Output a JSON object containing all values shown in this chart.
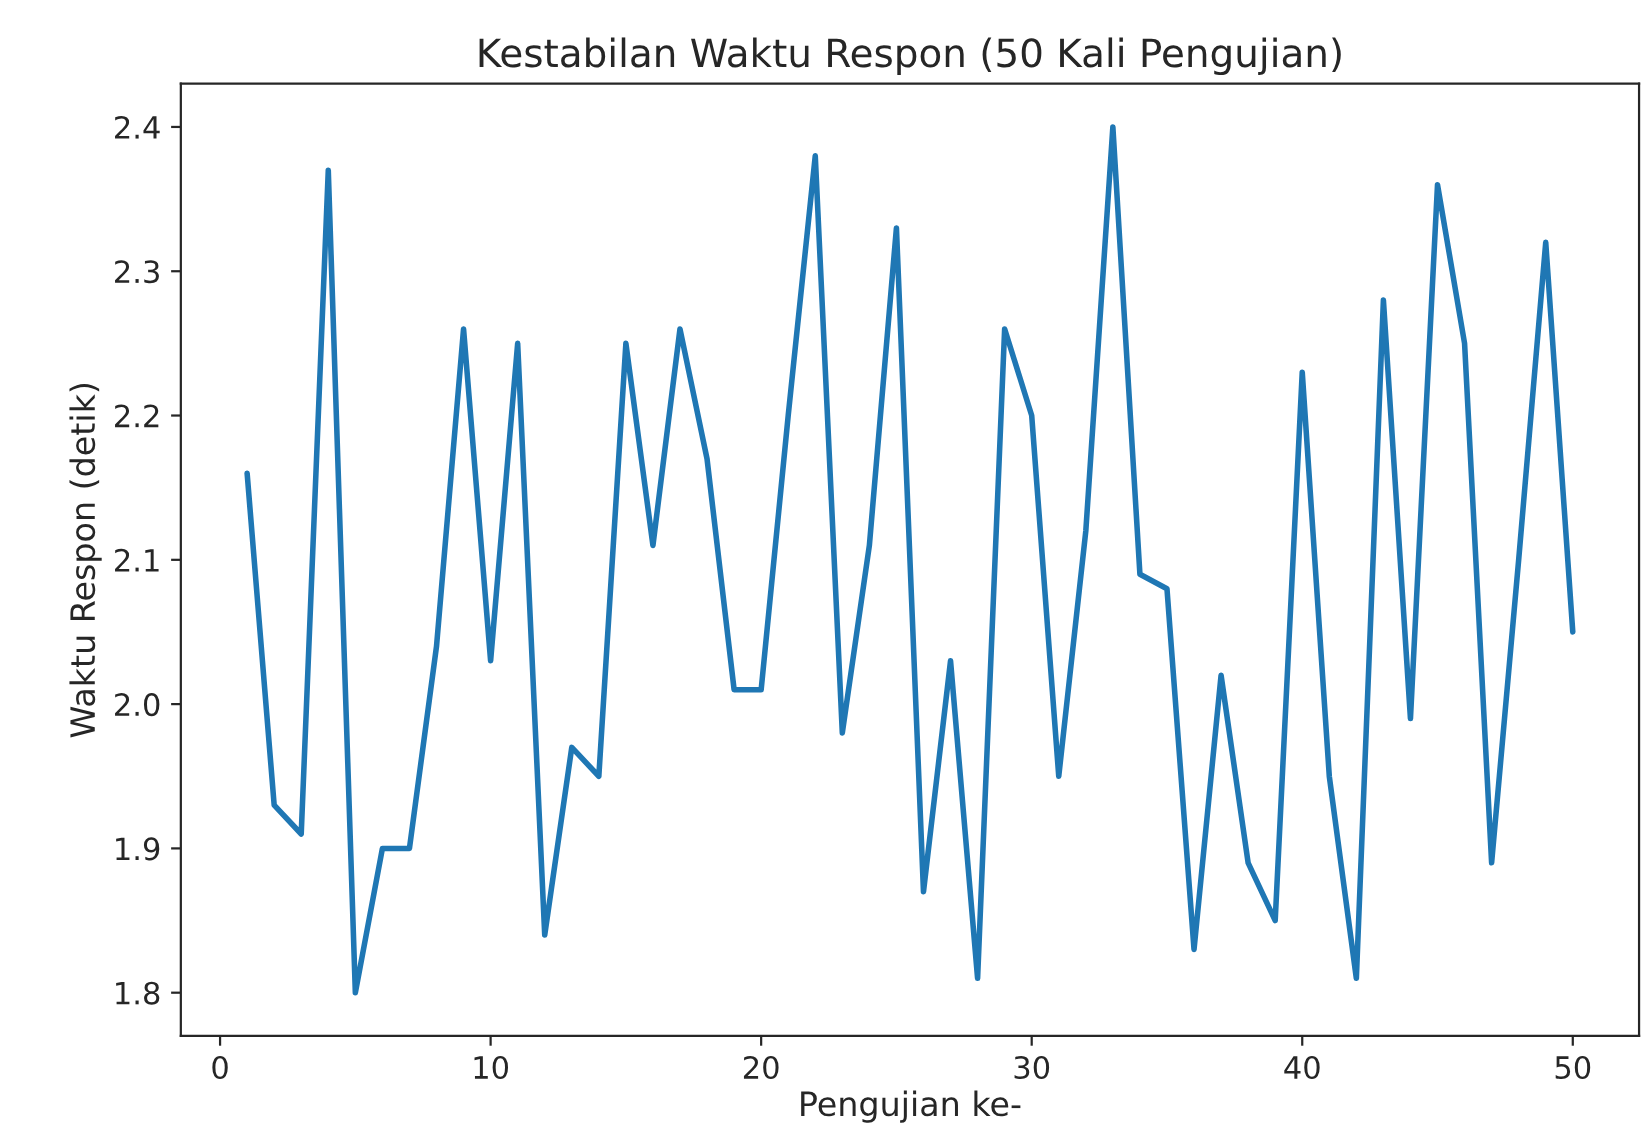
{
  "chart_data": {
    "type": "line",
    "title": "Kestabilan Waktu Respon (50 Kali Pengujian)",
    "xlabel": "Pengujian ke-",
    "ylabel": "Waktu Respon (detik)",
    "x": [
      1,
      2,
      3,
      4,
      5,
      6,
      7,
      8,
      9,
      10,
      11,
      12,
      13,
      14,
      15,
      16,
      17,
      18,
      19,
      20,
      21,
      22,
      23,
      24,
      25,
      26,
      27,
      28,
      29,
      30,
      31,
      32,
      33,
      34,
      35,
      36,
      37,
      38,
      39,
      40,
      41,
      42,
      43,
      44,
      45,
      46,
      47,
      48,
      49,
      50
    ],
    "series": [
      {
        "color": "#1f77b4",
        "values": [
          2.16,
          1.93,
          1.91,
          2.37,
          1.8,
          1.9,
          1.9,
          2.04,
          2.26,
          2.03,
          2.25,
          1.84,
          1.97,
          1.95,
          2.25,
          2.11,
          2.26,
          2.17,
          2.01,
          2.01,
          2.2,
          2.38,
          1.98,
          2.11,
          2.33,
          1.87,
          2.03,
          1.81,
          2.26,
          2.2,
          1.95,
          2.12,
          2.4,
          2.09,
          2.08,
          1.83,
          2.02,
          1.89,
          1.85,
          2.23,
          1.95,
          1.81,
          2.28,
          1.99,
          2.36,
          2.25,
          1.89,
          2.1,
          2.32,
          2.05
        ]
      }
    ],
    "xlim": [
      -1.45,
      52.45
    ],
    "ylim": [
      1.77,
      2.43
    ],
    "xticks": [
      0,
      10,
      20,
      30,
      40,
      50
    ],
    "yticks": [
      1.8,
      1.9,
      {
        "value": 2.0,
        "label": "2.0"
      },
      2.1,
      2.2,
      2.3,
      2.4
    ],
    "grid": false,
    "marker": "none",
    "line_style": "solid"
  }
}
